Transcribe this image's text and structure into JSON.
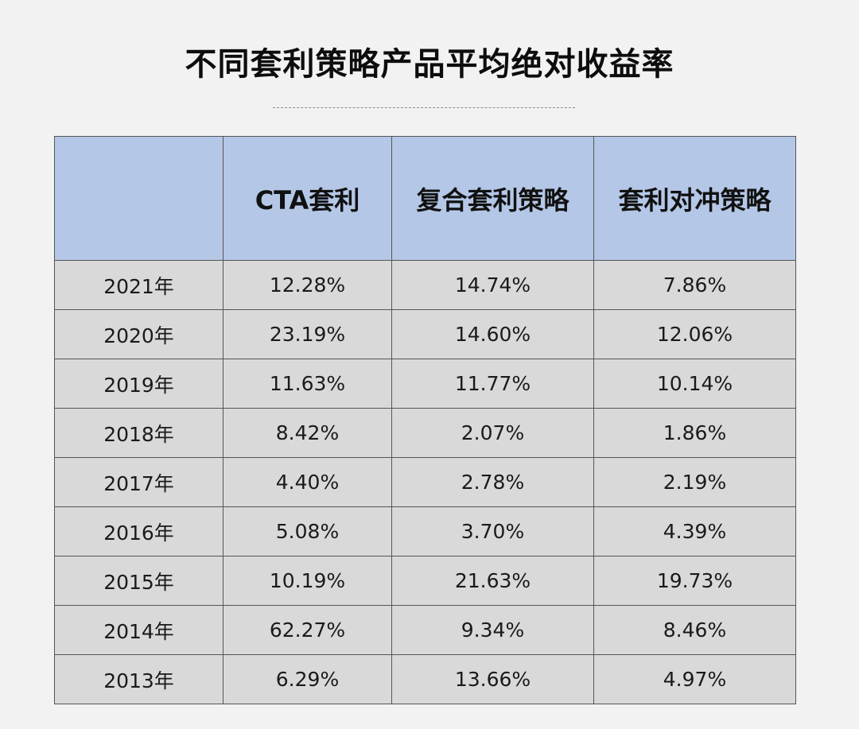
{
  "chart_data": {
    "type": "table",
    "title": "不同套利策略产品平均绝对收益率",
    "columns": [
      "",
      "CTA套利",
      "复合套利策略",
      "套利对冲策略"
    ],
    "rows": [
      [
        "2021年",
        "12.28%",
        "14.74%",
        "7.86%"
      ],
      [
        "2020年",
        "23.19%",
        "14.60%",
        "12.06%"
      ],
      [
        "2019年",
        "11.63%",
        "11.77%",
        "10.14%"
      ],
      [
        "2018年",
        "8.42%",
        "2.07%",
        "1.86%"
      ],
      [
        "2017年",
        "4.40%",
        "2.78%",
        "2.19%"
      ],
      [
        "2016年",
        "5.08%",
        "3.70%",
        "4.39%"
      ],
      [
        "2015年",
        "10.19%",
        "21.63%",
        "19.73%"
      ],
      [
        "2014年",
        "62.27%",
        "9.34%",
        "8.46%"
      ],
      [
        "2013年",
        "6.29%",
        "13.66%",
        "4.97%"
      ]
    ]
  },
  "colors": {
    "header_bg": "#b4c7e7",
    "cell_bg": "#d9d9d9",
    "page_bg": "#f2f2f2",
    "border": "#555555"
  }
}
